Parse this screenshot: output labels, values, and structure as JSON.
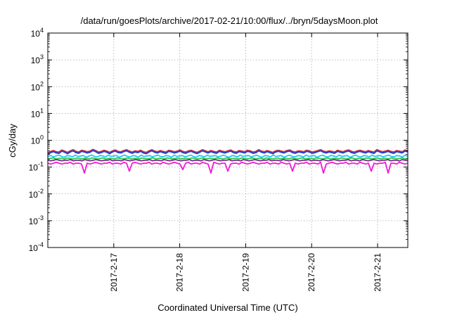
{
  "chart_data": {
    "type": "line",
    "title": "/data/run/goesPlots/archive/2017-02-21/10:00/flux/../bryn/5daysMoon.plot",
    "xlabel": "Coordinated Universal Time (UTC)",
    "ylabel": "cGy/day",
    "yscale": "log",
    "ylim": [
      0.0001,
      10000
    ],
    "y_ticks": [
      {
        "base": "10",
        "exp": "-4",
        "value": 0.0001
      },
      {
        "base": "10",
        "exp": "-3",
        "value": 0.001
      },
      {
        "base": "10",
        "exp": "-2",
        "value": 0.01
      },
      {
        "base": "10",
        "exp": "-1",
        "value": 0.1
      },
      {
        "base": "10",
        "exp": "0",
        "value": 1
      },
      {
        "base": "10",
        "exp": "1",
        "value": 10
      },
      {
        "base": "10",
        "exp": "2",
        "value": 100
      },
      {
        "base": "10",
        "exp": "3",
        "value": 1000
      },
      {
        "base": "10",
        "exp": "4",
        "value": 10000
      }
    ],
    "xlim": [
      "2017-02-16 00:00",
      "2017-02-21 11:00"
    ],
    "x_ticks": [
      {
        "label": "2017-2-17",
        "value": "2017-02-17"
      },
      {
        "label": "2017-2-18",
        "value": "2017-02-18"
      },
      {
        "label": "2017-2-19",
        "value": "2017-02-19"
      },
      {
        "label": "2017-2-20",
        "value": "2017-02-20"
      },
      {
        "label": "2017-2-21",
        "value": "2017-02-21"
      }
    ],
    "grid": true,
    "legend": "none",
    "series": [
      {
        "color": "#e8262d",
        "level": 0.38,
        "dips": [],
        "x_start": "2017-02-16 00:00",
        "x_step_hours": 1,
        "values": [
          0.33,
          0.38,
          0.41,
          0.37,
          0.36,
          0.43,
          0.39,
          0.35,
          0.4,
          0.44,
          0.38,
          0.36,
          0.42,
          0.4,
          0.37,
          0.39,
          0.45,
          0.41,
          0.36,
          0.38,
          0.42,
          0.39,
          0.35,
          0.4,
          0.43,
          0.38,
          0.37,
          0.41,
          0.44,
          0.39,
          0.36,
          0.4,
          0.38,
          0.42,
          0.37,
          0.35,
          0.4,
          0.44,
          0.39,
          0.37,
          0.41,
          0.38,
          0.36,
          0.42,
          0.4,
          0.37,
          0.39,
          0.43,
          0.38,
          0.36,
          0.4,
          0.42,
          0.38,
          0.35,
          0.39,
          0.44,
          0.4,
          0.37,
          0.41,
          0.38,
          0.36,
          0.42,
          0.39,
          0.37,
          0.4,
          0.43,
          0.38,
          0.36,
          0.41,
          0.39,
          0.37,
          0.42,
          0.4,
          0.36,
          0.38,
          0.44,
          0.39,
          0.37,
          0.41,
          0.38,
          0.35,
          0.4,
          0.42,
          0.39,
          0.37,
          0.41,
          0.43,
          0.38,
          0.36,
          0.4,
          0.39,
          0.37,
          0.42,
          0.4,
          0.36,
          0.38,
          0.41,
          0.44,
          0.39,
          0.37,
          0.4,
          0.38,
          0.36,
          0.42,
          0.39,
          0.37,
          0.41,
          0.43,
          0.38,
          0.36,
          0.4,
          0.42,
          0.39,
          0.37,
          0.41,
          0.38,
          0.36,
          0.44,
          0.4,
          0.37,
          0.39,
          0.42,
          0.38,
          0.36,
          0.41,
          0.39,
          0.37,
          0.43,
          0.4
        ]
      },
      {
        "color": "#2942c9",
        "level": 0.34,
        "dips": [],
        "x_start": "2017-02-16 00:00",
        "x_step_hours": 1,
        "values": [
          0.3,
          0.35,
          0.38,
          0.34,
          0.33,
          0.4,
          0.36,
          0.32,
          0.37,
          0.41,
          0.35,
          0.33,
          0.39,
          0.37,
          0.34,
          0.36,
          0.42,
          0.38,
          0.33,
          0.35,
          0.39,
          0.36,
          0.32,
          0.37,
          0.4,
          0.35,
          0.34,
          0.38,
          0.41,
          0.36,
          0.33,
          0.37,
          0.35,
          0.39,
          0.34,
          0.32,
          0.37,
          0.41,
          0.36,
          0.34,
          0.38,
          0.35,
          0.33,
          0.39,
          0.37,
          0.34,
          0.36,
          0.4,
          0.35,
          0.33,
          0.37,
          0.39,
          0.35,
          0.32,
          0.36,
          0.41,
          0.37,
          0.34,
          0.38,
          0.35,
          0.33,
          0.39,
          0.36,
          0.34,
          0.37,
          0.4,
          0.35,
          0.33,
          0.38,
          0.36,
          0.34,
          0.39,
          0.37,
          0.33,
          0.35,
          0.41,
          0.36,
          0.34,
          0.38,
          0.35,
          0.32,
          0.37,
          0.39,
          0.36,
          0.34,
          0.38,
          0.4,
          0.35,
          0.33,
          0.37,
          0.36,
          0.34,
          0.39,
          0.37,
          0.33,
          0.35,
          0.38,
          0.41,
          0.36,
          0.34,
          0.37,
          0.35,
          0.33,
          0.39,
          0.36,
          0.34,
          0.38,
          0.4,
          0.35,
          0.33,
          0.37,
          0.39,
          0.36,
          0.34,
          0.38,
          0.35,
          0.33,
          0.41,
          0.37,
          0.34,
          0.36,
          0.39,
          0.35,
          0.33,
          0.38,
          0.36,
          0.34,
          0.4,
          0.37
        ]
      },
      {
        "color": "#1ec8f0",
        "level": 0.26,
        "dips": [],
        "x_start": "2017-02-16 00:00",
        "x_step_hours": 1,
        "values": [
          0.25,
          0.27,
          0.24,
          0.26,
          0.28,
          0.25,
          0.23,
          0.27,
          0.26,
          0.24,
          0.28,
          0.25,
          0.26,
          0.27,
          0.23,
          0.26,
          0.28,
          0.25,
          0.24,
          0.27,
          0.26,
          0.24,
          0.28,
          0.25,
          0.26,
          0.27,
          0.23,
          0.26,
          0.28,
          0.25,
          0.24,
          0.27,
          0.26,
          0.23,
          0.28,
          0.25,
          0.26,
          0.27,
          0.24,
          0.26,
          0.28,
          0.25,
          0.24,
          0.27,
          0.26,
          0.23,
          0.28,
          0.25,
          0.26,
          0.27,
          0.24,
          0.26,
          0.28,
          0.25,
          0.23,
          0.27,
          0.26,
          0.24,
          0.28,
          0.25,
          0.26,
          0.27,
          0.24,
          0.26,
          0.28,
          0.25,
          0.23,
          0.27,
          0.26,
          0.24,
          0.28,
          0.25,
          0.26,
          0.27,
          0.24,
          0.26,
          0.28,
          0.25,
          0.23,
          0.27,
          0.26,
          0.24,
          0.28,
          0.25,
          0.26,
          0.27,
          0.23,
          0.26,
          0.28,
          0.25,
          0.24,
          0.27,
          0.26,
          0.24,
          0.28,
          0.25,
          0.26,
          0.27,
          0.23,
          0.26,
          0.28,
          0.25,
          0.24,
          0.27,
          0.26,
          0.24,
          0.28,
          0.25,
          0.26,
          0.27,
          0.23,
          0.26,
          0.28,
          0.25,
          0.24,
          0.27,
          0.26,
          0.24,
          0.28,
          0.25,
          0.26,
          0.27,
          0.24,
          0.26,
          0.28,
          0.25,
          0.24,
          0.27,
          0.26,
          0.24,
          0.28,
          0.25
        ]
      },
      {
        "color": "#2ec44a",
        "level": 0.21,
        "x_start": "2017-02-16 00:00",
        "x_step_hours": 1,
        "values": [
          0.2,
          0.21,
          0.22,
          0.2,
          0.21,
          0.21,
          0.2,
          0.22,
          0.21,
          0.2,
          0.21,
          0.22,
          0.2,
          0.21,
          0.21,
          0.2,
          0.22,
          0.21,
          0.2,
          0.21,
          0.22,
          0.2,
          0.21,
          0.21,
          0.2,
          0.22,
          0.21,
          0.2,
          0.21,
          0.22,
          0.2,
          0.21,
          0.21,
          0.2,
          0.22,
          0.21,
          0.2,
          0.21,
          0.22,
          0.2,
          0.21,
          0.21,
          0.2,
          0.22,
          0.21,
          0.2,
          0.21,
          0.22,
          0.2,
          0.21,
          0.21,
          0.2,
          0.22,
          0.21,
          0.2,
          0.21,
          0.22,
          0.2,
          0.21,
          0.21,
          0.2,
          0.22,
          0.21,
          0.2,
          0.21,
          0.22,
          0.2,
          0.21,
          0.21,
          0.2,
          0.22,
          0.21,
          0.2,
          0.21,
          0.22,
          0.2,
          0.21,
          0.21,
          0.2,
          0.22,
          0.21,
          0.2,
          0.21,
          0.22,
          0.2,
          0.21,
          0.21,
          0.2,
          0.22,
          0.21,
          0.2,
          0.21,
          0.22,
          0.2,
          0.21,
          0.21,
          0.2,
          0.22,
          0.21,
          0.2,
          0.21,
          0.22,
          0.2,
          0.21,
          0.21,
          0.2,
          0.22,
          0.21,
          0.2,
          0.21,
          0.22,
          0.2,
          0.21,
          0.21,
          0.2,
          0.22,
          0.21,
          0.2,
          0.21,
          0.22,
          0.2,
          0.21,
          0.21,
          0.2,
          0.22,
          0.21,
          0.2,
          0.21,
          0.22,
          0.2,
          0.21
        ]
      },
      {
        "color": "#7b2a86",
        "level": 0.18,
        "x_start": "2017-02-16 00:00",
        "x_step_hours": 1,
        "values": [
          0.18,
          0.17,
          0.18,
          0.19,
          0.18,
          0.17,
          0.18,
          0.18,
          0.19,
          0.17,
          0.18,
          0.18,
          0.17,
          0.19,
          0.18,
          0.17,
          0.18,
          0.19,
          0.18,
          0.17,
          0.18,
          0.18,
          0.19,
          0.17,
          0.18,
          0.18,
          0.17,
          0.19,
          0.18,
          0.17,
          0.18,
          0.19,
          0.18,
          0.17,
          0.18,
          0.18,
          0.19,
          0.17,
          0.18,
          0.18,
          0.17,
          0.19,
          0.18,
          0.17,
          0.18,
          0.19,
          0.18,
          0.17,
          0.18,
          0.18,
          0.19,
          0.17,
          0.18,
          0.18,
          0.17,
          0.19,
          0.18,
          0.17,
          0.18,
          0.19,
          0.18,
          0.17,
          0.18,
          0.18,
          0.19,
          0.17,
          0.18,
          0.18,
          0.17,
          0.19,
          0.18,
          0.17,
          0.18,
          0.19,
          0.18,
          0.17,
          0.18,
          0.18,
          0.19,
          0.17,
          0.18,
          0.18,
          0.17,
          0.19,
          0.18,
          0.17,
          0.18,
          0.19,
          0.18,
          0.17,
          0.18,
          0.18,
          0.19,
          0.17,
          0.18,
          0.18,
          0.17,
          0.19,
          0.18,
          0.17,
          0.18,
          0.19,
          0.18,
          0.17,
          0.18,
          0.18,
          0.19,
          0.17,
          0.18,
          0.18,
          0.17,
          0.19,
          0.18,
          0.17,
          0.18,
          0.19,
          0.18,
          0.17,
          0.18,
          0.18,
          0.19,
          0.17,
          0.18,
          0.18,
          0.17,
          0.19,
          0.18,
          0.17
        ]
      },
      {
        "color": "#f01bd6",
        "level": 0.14,
        "x_start": "2017-02-16 00:00",
        "x_step_hours": 1,
        "values": [
          0.14,
          0.13,
          0.14,
          0.15,
          0.14,
          0.13,
          0.14,
          0.14,
          0.15,
          0.13,
          0.14,
          0.14,
          0.13,
          0.06,
          0.14,
          0.13,
          0.14,
          0.15,
          0.14,
          0.13,
          0.14,
          0.14,
          0.15,
          0.13,
          0.14,
          0.14,
          0.13,
          0.15,
          0.14,
          0.07,
          0.14,
          0.15,
          0.14,
          0.13,
          0.14,
          0.14,
          0.15,
          0.13,
          0.14,
          0.14,
          0.13,
          0.15,
          0.14,
          0.13,
          0.14,
          0.15,
          0.14,
          0.13,
          0.08,
          0.14,
          0.15,
          0.13,
          0.14,
          0.14,
          0.13,
          0.15,
          0.14,
          0.13,
          0.06,
          0.15,
          0.14,
          0.13,
          0.14,
          0.14,
          0.07,
          0.13,
          0.14,
          0.14,
          0.13,
          0.15,
          0.14,
          0.13,
          0.14,
          0.15,
          0.14,
          0.13,
          0.14,
          0.14,
          0.15,
          0.13,
          0.14,
          0.14,
          0.13,
          0.15,
          0.14,
          0.13,
          0.14,
          0.07,
          0.14,
          0.13,
          0.14,
          0.14,
          0.15,
          0.13,
          0.14,
          0.14,
          0.13,
          0.15,
          0.06,
          0.13,
          0.14,
          0.15,
          0.14,
          0.13,
          0.14,
          0.14,
          0.15,
          0.13,
          0.14,
          0.14,
          0.13,
          0.15,
          0.14,
          0.13,
          0.14,
          0.07,
          0.14,
          0.13,
          0.14,
          0.14,
          0.15,
          0.06,
          0.14,
          0.14,
          0.13,
          0.15,
          0.14,
          0.13,
          0.14
        ]
      }
    ]
  }
}
